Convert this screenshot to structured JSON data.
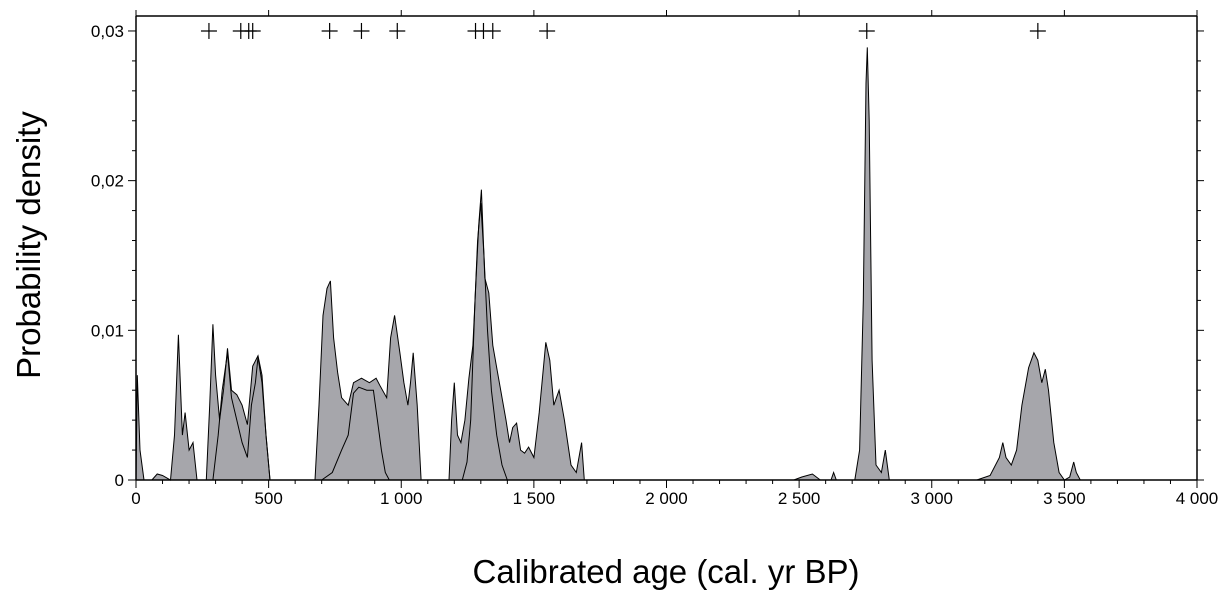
{
  "chart_data": {
    "type": "area",
    "xlabel": "Calibrated age (cal. yr BP)",
    "ylabel": "Probability density",
    "xlim": [
      0,
      4000
    ],
    "ylim": [
      0,
      0.031
    ],
    "x_ticks": [
      0,
      500,
      1000,
      1500,
      2000,
      2500,
      3000,
      3500,
      4000
    ],
    "x_tick_labels": [
      "0",
      "500",
      "1 000",
      "1 500",
      "2 000",
      "2 500",
      "3 000",
      "3 500",
      "4 000"
    ],
    "y_ticks": [
      0,
      0.01,
      0.02,
      0.03
    ],
    "y_tick_labels": [
      "0",
      "0,01",
      "0,02",
      "0,03"
    ],
    "grid": false,
    "legend": "none",
    "marker_y": 0.03,
    "markers_x": [
      275,
      395,
      425,
      440,
      730,
      850,
      985,
      1280,
      1310,
      1345,
      1550,
      2755,
      3400
    ],
    "fill_color": "#a6a6ab",
    "series": [
      {
        "points": [
          [
            0,
            0
          ],
          [
            5,
            0.007
          ],
          [
            15,
            0.002
          ],
          [
            30,
            0
          ],
          [
            60,
            0
          ],
          [
            80,
            0.0004
          ],
          [
            100,
            0.0003
          ],
          [
            130,
            0
          ],
          [
            145,
            0.003
          ],
          [
            160,
            0.0097
          ],
          [
            175,
            0.003
          ],
          [
            185,
            0.0045
          ],
          [
            200,
            0.002
          ],
          [
            215,
            0.0025
          ],
          [
            230,
            0
          ]
        ]
      },
      {
        "points": [
          [
            265,
            0
          ],
          [
            278,
            0.005
          ],
          [
            290,
            0.0104
          ],
          [
            300,
            0.007
          ],
          [
            315,
            0.004
          ],
          [
            330,
            0.006
          ],
          [
            345,
            0.0088
          ],
          [
            360,
            0.006
          ],
          [
            380,
            0.0057
          ],
          [
            400,
            0.005
          ],
          [
            420,
            0.0037
          ],
          [
            440,
            0.0076
          ],
          [
            460,
            0.0083
          ],
          [
            475,
            0.007
          ],
          [
            490,
            0.003
          ],
          [
            505,
            0
          ]
        ]
      },
      {
        "points": [
          [
            675,
            0
          ],
          [
            690,
            0.005
          ],
          [
            705,
            0.011
          ],
          [
            720,
            0.0128
          ],
          [
            733,
            0.0133
          ],
          [
            745,
            0.0095
          ],
          [
            760,
            0.0072
          ],
          [
            775,
            0.0055
          ],
          [
            800,
            0.005
          ],
          [
            820,
            0.0065
          ],
          [
            850,
            0.0068
          ],
          [
            880,
            0.0065
          ],
          [
            905,
            0.0068
          ],
          [
            920,
            0.0063
          ],
          [
            945,
            0.0055
          ],
          [
            960,
            0.0095
          ],
          [
            975,
            0.011
          ],
          [
            995,
            0.0085
          ],
          [
            1010,
            0.0065
          ],
          [
            1025,
            0.005
          ],
          [
            1035,
            0.0065
          ],
          [
            1045,
            0.0085
          ],
          [
            1060,
            0.005
          ],
          [
            1075,
            0
          ]
        ]
      },
      {
        "points": [
          [
            1180,
            0
          ],
          [
            1190,
            0.004
          ],
          [
            1200,
            0.0065
          ],
          [
            1212,
            0.003
          ],
          [
            1225,
            0.0025
          ],
          [
            1240,
            0.004
          ],
          [
            1255,
            0.0068
          ],
          [
            1270,
            0.009
          ],
          [
            1282,
            0.0135
          ],
          [
            1292,
            0.017
          ],
          [
            1302,
            0.0194
          ],
          [
            1315,
            0.0135
          ],
          [
            1330,
            0.0125
          ],
          [
            1345,
            0.009
          ],
          [
            1360,
            0.0075
          ],
          [
            1375,
            0.006
          ],
          [
            1395,
            0.004
          ],
          [
            1408,
            0.0025
          ],
          [
            1420,
            0.0035
          ],
          [
            1435,
            0.0038
          ],
          [
            1450,
            0.002
          ],
          [
            1465,
            0.0018
          ],
          [
            1480,
            0.0022
          ],
          [
            1500,
            0.0015
          ],
          [
            1520,
            0.0045
          ],
          [
            1545,
            0.0092
          ],
          [
            1560,
            0.008
          ],
          [
            1575,
            0.005
          ],
          [
            1595,
            0.006
          ],
          [
            1615,
            0.004
          ],
          [
            1640,
            0.001
          ],
          [
            1660,
            0.0005
          ],
          [
            1680,
            0.0025
          ],
          [
            1690,
            0
          ]
        ]
      },
      {
        "points": [
          [
            2480,
            0
          ],
          [
            2510,
            0.0002
          ],
          [
            2550,
            0.0004
          ],
          [
            2580,
            0
          ],
          [
            2620,
            0
          ],
          [
            2630,
            0.0005
          ],
          [
            2640,
            0
          ]
        ]
      },
      {
        "points": [
          [
            2710,
            0
          ],
          [
            2728,
            0.002
          ],
          [
            2742,
            0.012
          ],
          [
            2752,
            0.0265
          ],
          [
            2757,
            0.0289
          ],
          [
            2764,
            0.024
          ],
          [
            2775,
            0.008
          ],
          [
            2790,
            0.001
          ],
          [
            2810,
            0.0005
          ],
          [
            2825,
            0.002
          ],
          [
            2840,
            0
          ]
        ]
      },
      {
        "points": [
          [
            3170,
            0
          ],
          [
            3220,
            0.0003
          ],
          [
            3255,
            0.0015
          ],
          [
            3268,
            0.0025
          ],
          [
            3280,
            0.0015
          ],
          [
            3300,
            0.001
          ],
          [
            3320,
            0.002
          ],
          [
            3340,
            0.005
          ],
          [
            3365,
            0.0075
          ],
          [
            3385,
            0.0085
          ],
          [
            3400,
            0.008
          ],
          [
            3415,
            0.0065
          ],
          [
            3428,
            0.0074
          ],
          [
            3440,
            0.006
          ],
          [
            3460,
            0.0025
          ],
          [
            3480,
            0.0005
          ],
          [
            3500,
            0
          ],
          [
            3520,
            0.0002
          ],
          [
            3535,
            0.0012
          ],
          [
            3545,
            0.0005
          ],
          [
            3560,
            0
          ]
        ]
      }
    ],
    "outline_series": [
      {
        "points": [
          [
            290,
            0
          ],
          [
            310,
            0.003
          ],
          [
            325,
            0.006
          ],
          [
            345,
            0.0085
          ],
          [
            360,
            0.0055
          ],
          [
            380,
            0.004
          ],
          [
            400,
            0.0025
          ],
          [
            420,
            0.0015
          ],
          [
            435,
            0.005
          ],
          [
            450,
            0.0065
          ],
          [
            460,
            0.0082
          ],
          [
            475,
            0.0065
          ],
          [
            490,
            0.003
          ],
          [
            505,
            0
          ]
        ]
      },
      {
        "points": [
          [
            700,
            0
          ],
          [
            740,
            0.0005
          ],
          [
            775,
            0.002
          ],
          [
            800,
            0.003
          ],
          [
            820,
            0.0058
          ],
          [
            840,
            0.0062
          ],
          [
            870,
            0.006
          ],
          [
            895,
            0.006
          ],
          [
            910,
            0.004
          ],
          [
            925,
            0.002
          ],
          [
            940,
            0.0005
          ],
          [
            955,
            0
          ]
        ]
      },
      {
        "points": [
          [
            1230,
            0
          ],
          [
            1248,
            0.0012
          ],
          [
            1262,
            0.004
          ],
          [
            1278,
            0.012
          ],
          [
            1288,
            0.016
          ],
          [
            1300,
            0.0185
          ],
          [
            1312,
            0.015
          ],
          [
            1325,
            0.01
          ],
          [
            1340,
            0.006
          ],
          [
            1360,
            0.003
          ],
          [
            1380,
            0.001
          ],
          [
            1400,
            0
          ]
        ]
      }
    ]
  }
}
